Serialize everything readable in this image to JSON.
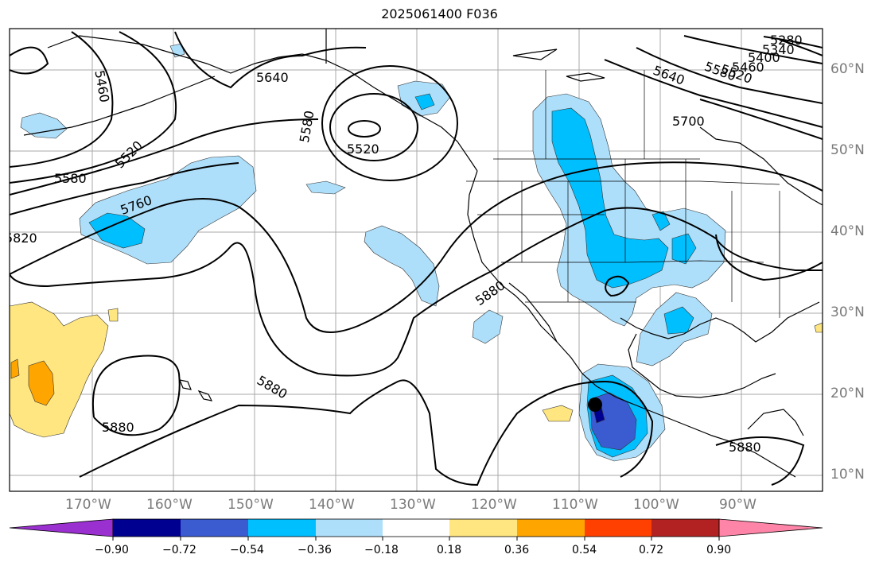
{
  "title": "2025061400 F036",
  "lon_labels": [
    "170°W",
    "160°W",
    "150°W",
    "140°W",
    "130°W",
    "120°W",
    "110°W",
    "100°W",
    "90°W"
  ],
  "lat_labels": [
    "60°N",
    "50°N",
    "40°N",
    "30°N",
    "20°N",
    "10°N"
  ],
  "contour_labels": [
    "5280",
    "5340",
    "5400",
    "5460",
    "5520",
    "5580",
    "5640",
    "5700",
    "5460",
    "5520",
    "5580",
    "5520",
    "5580",
    "5640",
    "5760",
    "5820",
    "5880",
    "5880",
    "5880",
    "5880"
  ],
  "colorbar": {
    "ticks": [
      "−0.90",
      "−0.72",
      "−0.54",
      "−0.36",
      "−0.18",
      "0.18",
      "0.36",
      "0.54",
      "0.72",
      "0.90"
    ],
    "colors": [
      "#9b30d0",
      "#000090",
      "#3b5bd0",
      "#00bfff",
      "#aedffa",
      "#ffffff",
      "#ffe680",
      "#ffa500",
      "#ff4000",
      "#b22222",
      "#ff85a8"
    ]
  },
  "marker": "storm-center-dot"
}
